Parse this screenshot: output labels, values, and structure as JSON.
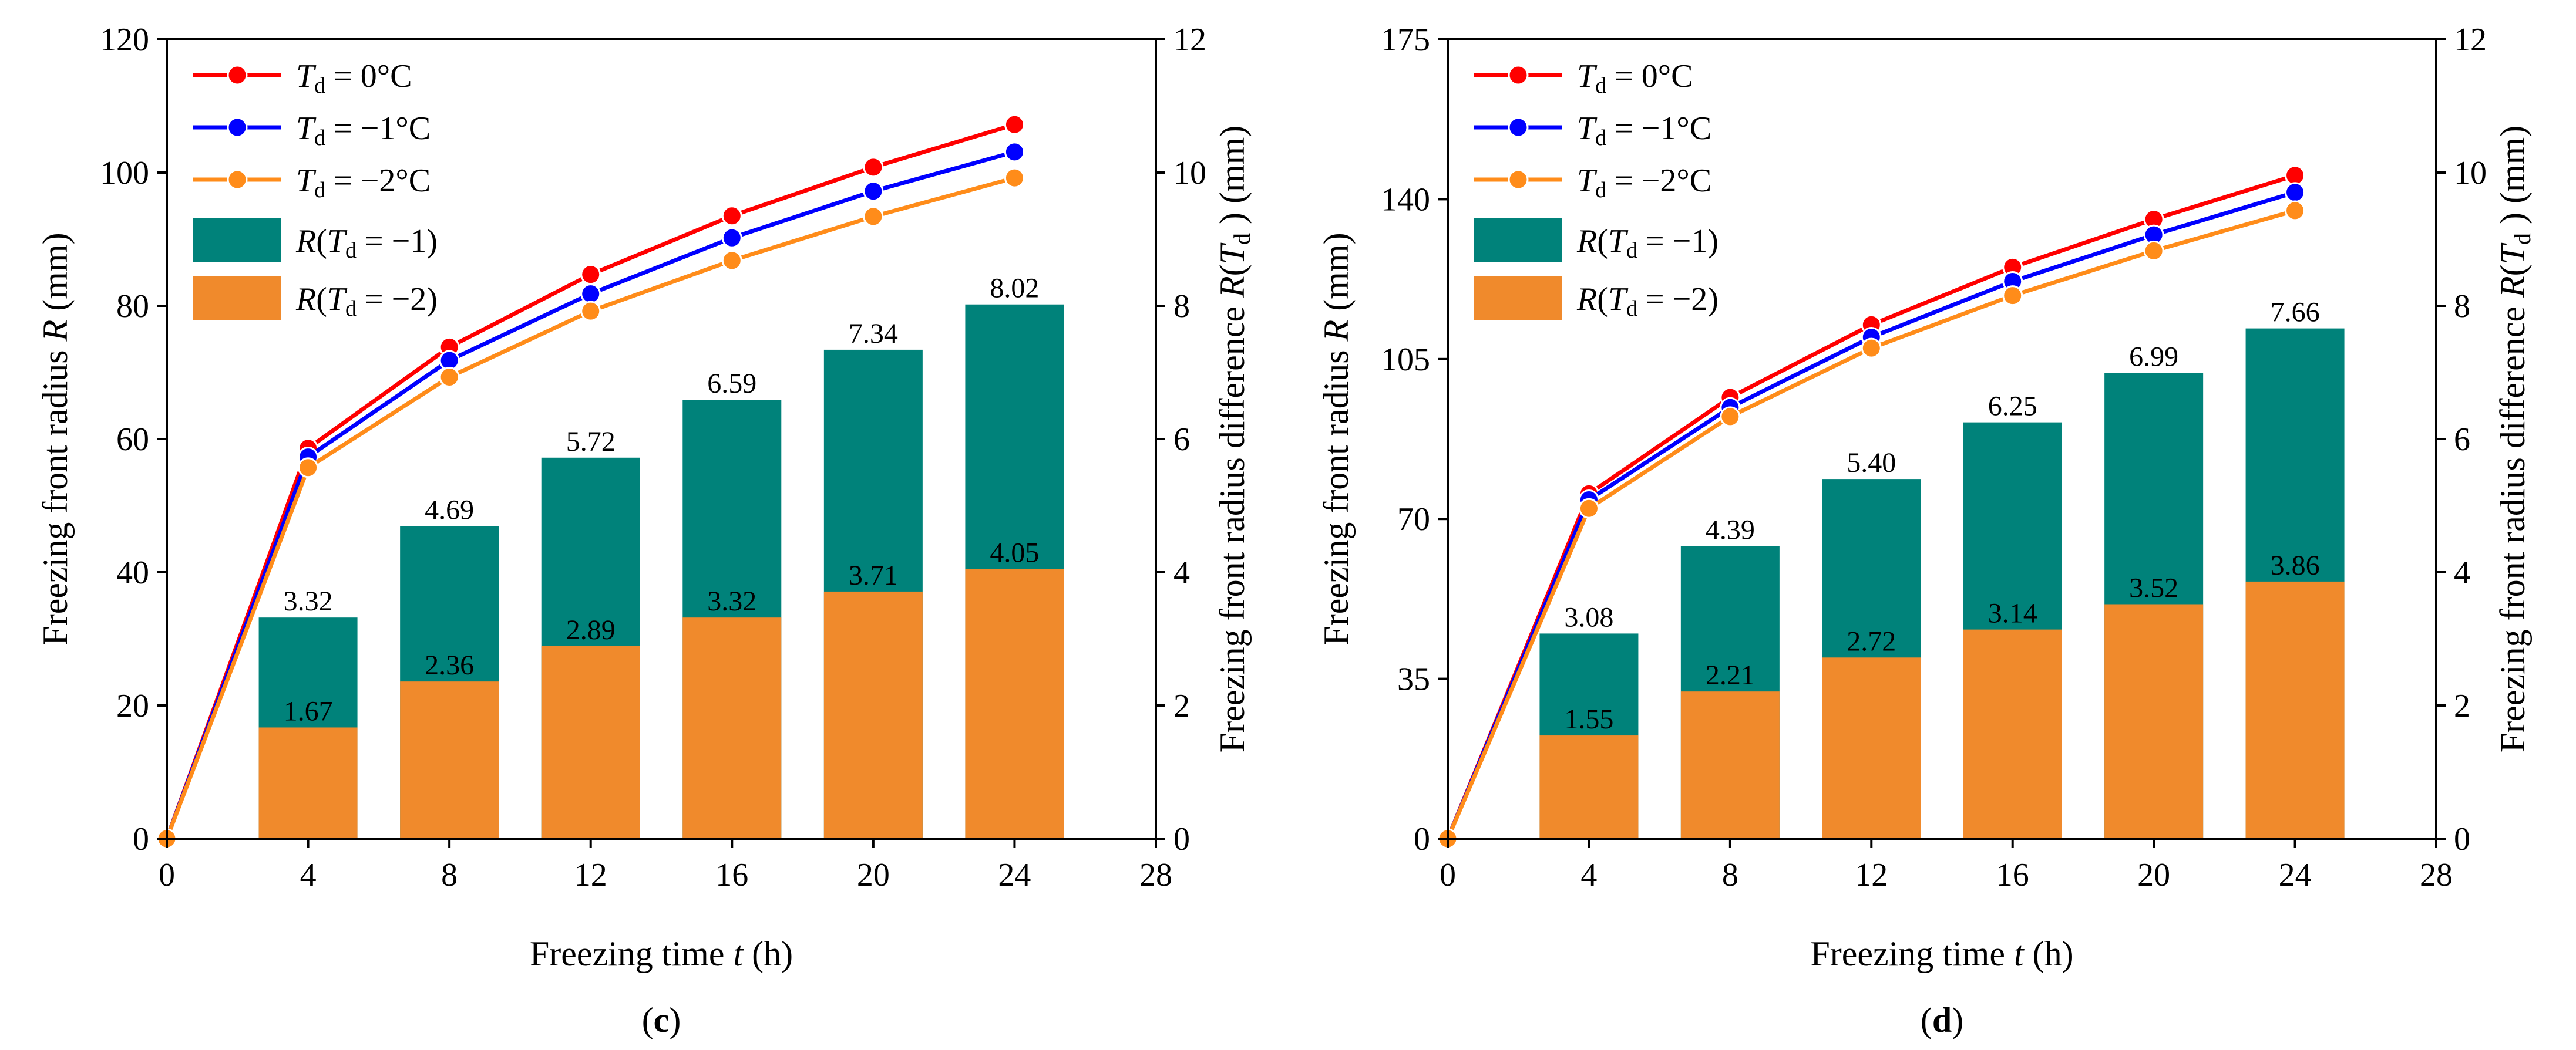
{
  "chart_data": [
    {
      "type": "bar+line",
      "panel_label": "c",
      "title": "",
      "xlabel_prefix": "Freezing time ",
      "xlabel_var": "t",
      "xlabel_suffix": " (h)",
      "ylabel_prefix": "Freezing front radius ",
      "ylabel_var": "R",
      "ylabel_suffix": " (mm)",
      "y2label_prefix": "Freezing front radius difference ",
      "y2label_var": "R",
      "y2label_arg": "T",
      "y2label_sub": "d",
      "y2label_suffix": " ) (mm)",
      "xlim": [
        0,
        28
      ],
      "xticks": [
        0,
        4,
        8,
        12,
        16,
        20,
        24,
        28
      ],
      "ylim": [
        0,
        120
      ],
      "yticks": [
        0,
        20,
        40,
        60,
        80,
        100,
        120
      ],
      "y2lim": [
        0,
        12
      ],
      "y2ticks": [
        0,
        2,
        4,
        6,
        8,
        10,
        12
      ],
      "x": [
        0,
        4,
        8,
        12,
        16,
        20,
        24
      ],
      "line_series": [
        {
          "name": "T_d = 0°C",
          "legend_var": "T",
          "legend_sub": "d",
          "legend_rest": " = 0°C",
          "color": "#ff0000",
          "values": [
            0,
            58.6,
            73.8,
            84.7,
            93.5,
            100.8,
            107.2
          ]
        },
        {
          "name": "T_d = −1°C",
          "legend_var": "T",
          "legend_sub": "d",
          "legend_rest": " = −1°C",
          "color": "#0000ff",
          "values": [
            0,
            57.3,
            71.8,
            81.8,
            90.2,
            97.2,
            103.1
          ]
        },
        {
          "name": "T_d = −2°C",
          "legend_var": "T",
          "legend_sub": "d",
          "legend_rest": " = −2°C",
          "color": "#ff8c1a",
          "values": [
            0,
            55.7,
            69.3,
            79.2,
            86.8,
            93.4,
            99.2
          ]
        }
      ],
      "bar_x": [
        4,
        8,
        12,
        16,
        20,
        24
      ],
      "bar_series": [
        {
          "name": "R(T_d = −1)",
          "legend_var": "T",
          "legend_sub": "d",
          "legend_rest": " = −1)",
          "legend_pre": "R(",
          "color": "#00827a",
          "values": [
            3.32,
            4.69,
            5.72,
            6.59,
            7.34,
            8.02
          ],
          "labels": [
            "3.32",
            "4.69",
            "5.72",
            "6.59",
            "7.34",
            "8.02"
          ]
        },
        {
          "name": "R(T_d = −2)",
          "legend_var": "T",
          "legend_sub": "d",
          "legend_rest": " = −2)",
          "legend_pre": "R(",
          "color": "#f08a2c",
          "values": [
            1.67,
            2.36,
            2.89,
            3.32,
            3.71,
            4.05
          ],
          "labels": [
            "1.67",
            "2.36",
            "2.89",
            "3.32",
            "3.71",
            "4.05"
          ]
        }
      ]
    },
    {
      "type": "bar+line",
      "panel_label": "d",
      "title": "",
      "xlabel_prefix": "Freezing time ",
      "xlabel_var": "t",
      "xlabel_suffix": " (h)",
      "ylabel_prefix": "Freezing front radius ",
      "ylabel_var": "R",
      "ylabel_suffix": " (mm)",
      "y2label_prefix": "Freezing front radius difference ",
      "y2label_var": "R",
      "y2label_arg": "T",
      "y2label_sub": "d",
      "y2label_suffix": " ) (mm)",
      "xlim": [
        0,
        28
      ],
      "xticks": [
        0,
        4,
        8,
        12,
        16,
        20,
        24,
        28
      ],
      "ylim": [
        0,
        175
      ],
      "yticks": [
        0,
        35,
        70,
        105,
        140,
        175
      ],
      "y2lim": [
        0,
        12
      ],
      "y2ticks": [
        0,
        2,
        4,
        6,
        8,
        10,
        12
      ],
      "x": [
        0,
        4,
        8,
        12,
        16,
        20,
        24
      ],
      "line_series": [
        {
          "name": "T_d = 0°C",
          "legend_var": "T",
          "legend_sub": "d",
          "legend_rest": " = 0°C",
          "color": "#ff0000",
          "values": [
            0,
            75.5,
            96.6,
            112.5,
            125.1,
            135.6,
            145.2
          ]
        },
        {
          "name": "T_d = −1°C",
          "legend_var": "T",
          "legend_sub": "d",
          "legend_rest": " = −1°C",
          "color": "#0000ff",
          "values": [
            0,
            74.2,
            94.4,
            109.8,
            122.0,
            132.2,
            141.5
          ]
        },
        {
          "name": "T_d = −2°C",
          "legend_var": "T",
          "legend_sub": "d",
          "legend_rest": " = −2°C",
          "color": "#ff8c1a",
          "values": [
            0,
            72.3,
            92.4,
            107.4,
            118.9,
            128.7,
            137.5
          ]
        }
      ],
      "bar_x": [
        4,
        8,
        12,
        16,
        20,
        24
      ],
      "bar_series": [
        {
          "name": "R(T_d = −1)",
          "legend_var": "T",
          "legend_sub": "d",
          "legend_rest": " = −1)",
          "legend_pre": "R(",
          "color": "#00827a",
          "values": [
            3.08,
            4.39,
            5.4,
            6.25,
            6.99,
            7.66
          ],
          "labels": [
            "3.08",
            "4.39",
            "5.40",
            "6.25",
            "6.99",
            "7.66"
          ]
        },
        {
          "name": "R(T_d = −2)",
          "legend_var": "T",
          "legend_sub": "d",
          "legend_rest": " = −2)",
          "legend_pre": "R(",
          "color": "#f08a2c",
          "values": [
            1.55,
            2.21,
            2.72,
            3.14,
            3.52,
            3.86
          ],
          "labels": [
            "1.55",
            "2.21",
            "2.72",
            "3.14",
            "3.52",
            "3.86"
          ]
        }
      ]
    }
  ]
}
